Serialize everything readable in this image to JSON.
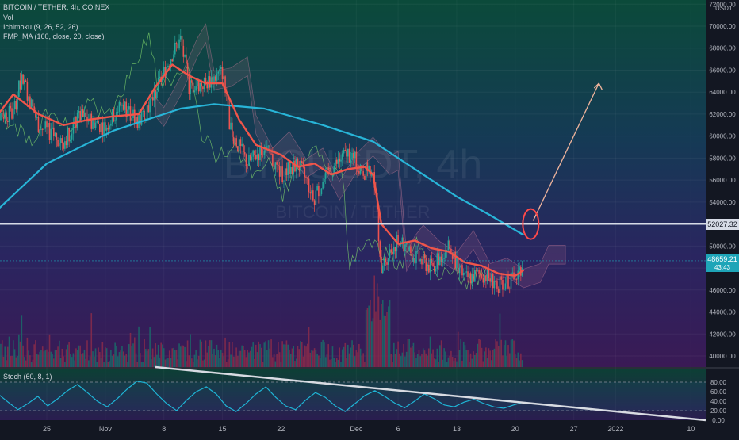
{
  "header": {
    "symbol": "BITCOIN / TETHER, 4h, COINEX",
    "indicators": [
      "Vol",
      "Ichimoku (9, 26, 52, 26)",
      "FMP_MA (160, close, 20, close)"
    ],
    "stoch": "Stoch (60, 8, 1)",
    "currency": "USDT"
  },
  "watermark": {
    "main": "BTCUSDT, 4h",
    "sub": "BITCOIN / TETHER"
  },
  "price_badges": {
    "level": "52027.32",
    "last": "48659.21",
    "countdown": "43:43"
  },
  "colors": {
    "candle_up": "#26a69a",
    "candle_down": "#ef5350",
    "ma_red": "#f0554a",
    "ma_blue": "#28b5d8",
    "support_line": "#d6dbe6",
    "annotation": "#ff4a4a",
    "arrow": "#f0b49c",
    "stoch": "#1fb5d6",
    "trendline": "#d8dbe2"
  },
  "chart_data": {
    "type": "candlestick",
    "y_axis": {
      "ticks": [
        40000,
        42000,
        44000,
        46000,
        48000,
        50000,
        52000,
        54000,
        56000,
        58000,
        60000,
        62000,
        64000,
        66000,
        68000,
        70000,
        72000
      ],
      "ylim": [
        39000,
        72500
      ]
    },
    "x_axis": {
      "ticks": [
        "25",
        "Nov",
        "8",
        "15",
        "22",
        "Dec",
        "6",
        "13",
        "20",
        "27",
        "2022",
        "10"
      ]
    },
    "price_path": [
      {
        "x": "Oct 21",
        "y": 62000
      },
      {
        "x": "Oct 22",
        "y": 65500
      },
      {
        "x": "Oct 24",
        "y": 61000
      },
      {
        "x": "Oct 27",
        "y": 59500
      },
      {
        "x": "Oct 29",
        "y": 61800
      },
      {
        "x": "Nov 1",
        "y": 60800
      },
      {
        "x": "Nov 3",
        "y": 63000
      },
      {
        "x": "Nov 5",
        "y": 61200
      },
      {
        "x": "Nov 7",
        "y": 64000
      },
      {
        "x": "Nov 9",
        "y": 67500
      },
      {
        "x": "Nov 10",
        "y": 68800
      },
      {
        "x": "Nov 11",
        "y": 64500
      },
      {
        "x": "Nov 13",
        "y": 64800
      },
      {
        "x": "Nov 15",
        "y": 65800
      },
      {
        "x": "Nov 16",
        "y": 60500
      },
      {
        "x": "Nov 18",
        "y": 57500
      },
      {
        "x": "Nov 20",
        "y": 59000
      },
      {
        "x": "Nov 22",
        "y": 56500
      },
      {
        "x": "Nov 24",
        "y": 57500
      },
      {
        "x": "Nov 26",
        "y": 54500
      },
      {
        "x": "Nov 28",
        "y": 57000
      },
      {
        "x": "Nov 30",
        "y": 58500
      },
      {
        "x": "Dec 2",
        "y": 56800
      },
      {
        "x": "Dec 3",
        "y": 57200
      },
      {
        "x": "Dec 4",
        "y": 48000
      },
      {
        "x": "Dec 5",
        "y": 49500
      },
      {
        "x": "Dec 6",
        "y": 50500
      },
      {
        "x": "Dec 8",
        "y": 49000
      },
      {
        "x": "Dec 10",
        "y": 48000
      },
      {
        "x": "Dec 12",
        "y": 50000
      },
      {
        "x": "Dec 14",
        "y": 47000
      },
      {
        "x": "Dec 16",
        "y": 47500
      },
      {
        "x": "Dec 18",
        "y": 46500
      },
      {
        "x": "Dec 20",
        "y": 47000
      },
      {
        "x": "Dec 21",
        "y": 48659
      }
    ],
    "ma_fast_path": [
      {
        "x": "Oct 18",
        "y": 60800
      },
      {
        "x": "Oct 21",
        "y": 63800
      },
      {
        "x": "Oct 24",
        "y": 62000
      },
      {
        "x": "Oct 27",
        "y": 61000
      },
      {
        "x": "Oct 30",
        "y": 61500
      },
      {
        "x": "Nov 2",
        "y": 61800
      },
      {
        "x": "Nov 5",
        "y": 62000
      },
      {
        "x": "Nov 7",
        "y": 64500
      },
      {
        "x": "Nov 9",
        "y": 66500
      },
      {
        "x": "Nov 11",
        "y": 65500
      },
      {
        "x": "Nov 13",
        "y": 64800
      },
      {
        "x": "Nov 15",
        "y": 64800
      },
      {
        "x": "Nov 17",
        "y": 61500
      },
      {
        "x": "Nov 19",
        "y": 59200
      },
      {
        "x": "Nov 22",
        "y": 58300
      },
      {
        "x": "Nov 24",
        "y": 57200
      },
      {
        "x": "Nov 26",
        "y": 57500
      },
      {
        "x": "Nov 28",
        "y": 56500
      },
      {
        "x": "Nov 30",
        "y": 57000
      },
      {
        "x": "Dec 2",
        "y": 57200
      },
      {
        "x": "Dec 3",
        "y": 56500
      },
      {
        "x": "Dec 4",
        "y": 52000
      },
      {
        "x": "Dec 6",
        "y": 50200
      },
      {
        "x": "Dec 8",
        "y": 50500
      },
      {
        "x": "Dec 10",
        "y": 49800
      },
      {
        "x": "Dec 12",
        "y": 49500
      },
      {
        "x": "Dec 14",
        "y": 48500
      },
      {
        "x": "Dec 16",
        "y": 48200
      },
      {
        "x": "Dec 18",
        "y": 47500
      },
      {
        "x": "Dec 20",
        "y": 47300
      },
      {
        "x": "Dec 21",
        "y": 47800
      }
    ],
    "ma_slow_path": [
      {
        "x": "Oct 18",
        "y": 52500
      },
      {
        "x": "Oct 25",
        "y": 57500
      },
      {
        "x": "Nov 2",
        "y": 60500
      },
      {
        "x": "Nov 10",
        "y": 62500
      },
      {
        "x": "Nov 14",
        "y": 62900
      },
      {
        "x": "Nov 20",
        "y": 62500
      },
      {
        "x": "Nov 27",
        "y": 61000
      },
      {
        "x": "Dec 3",
        "y": 59500
      },
      {
        "x": "Dec 8",
        "y": 57000
      },
      {
        "x": "Dec 13",
        "y": 54500
      },
      {
        "x": "Dec 17",
        "y": 52800
      },
      {
        "x": "Dec 21",
        "y": 51000
      }
    ],
    "horizontal_level": 52027.32,
    "last_price": 48659.21,
    "arrow": {
      "from": {
        "x": "Dec 21",
        "y": 52300
      },
      "to": {
        "x": "Dec 30",
        "y": 64800
      }
    },
    "stoch": {
      "y_axis_ticks": [
        0.0,
        20.0,
        40.0,
        60.0,
        80.0
      ],
      "bands": [
        20,
        80
      ],
      "values": [
        42,
        55,
        38,
        22,
        35,
        50,
        30,
        45,
        62,
        75,
        58,
        40,
        28,
        45,
        65,
        82,
        78,
        55,
        35,
        20,
        42,
        60,
        70,
        55,
        30,
        18,
        35,
        55,
        70,
        48,
        30,
        22,
        42,
        58,
        48,
        30,
        18,
        35,
        52,
        62,
        50,
        36,
        26,
        40,
        55,
        45,
        32,
        28,
        38,
        44,
        35,
        28,
        25,
        32,
        38
      ]
    }
  }
}
